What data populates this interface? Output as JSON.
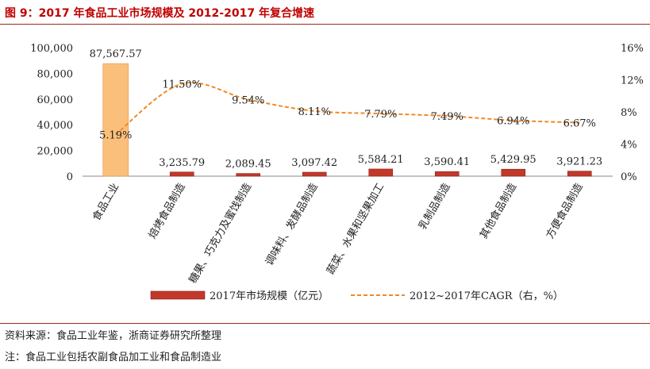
{
  "header": {
    "title": "图 9：2017 年食品工业市场规模及 2012-2017 年复合增速"
  },
  "footer": {
    "source": "资料来源：食品工业年鉴，浙商证券研究所整理",
    "note": "注：食品工业包括农副食品加工业和食品制造业"
  },
  "chart_data": {
    "type": "bar",
    "categories": [
      "食品工业",
      "焙烤食品制造",
      "糖果、巧克力及蜜饯制造",
      "调味料、发酵品制造",
      "蔬菜、水果和坚果加工",
      "乳制品制造",
      "其他食品制造",
      "方便食品制造"
    ],
    "series": [
      {
        "name": "2017年市场规模（亿元）",
        "type": "bar",
        "axis": "left",
        "values": [
          87567.57,
          3235.79,
          2089.45,
          3097.42,
          5584.21,
          3590.41,
          5429.95,
          3921.23
        ],
        "labels": [
          "87,567.57",
          "3,235.79",
          "2,089.45",
          "3,097.42",
          "5,584.21",
          "3,590.41",
          "5,429.95",
          "3,921.23"
        ]
      },
      {
        "name": "2012~2017年CAGR（右，%）",
        "type": "line",
        "axis": "right",
        "values": [
          5.19,
          11.5,
          9.54,
          8.11,
          7.79,
          7.49,
          6.94,
          6.67
        ],
        "labels": [
          "5.19%",
          "11.50%",
          "9.54%",
          "8.11%",
          "7.79%",
          "7.49%",
          "6.94%",
          "6.67%"
        ]
      }
    ],
    "y_left": {
      "lim": [
        0,
        100000
      ],
      "ticks": [
        "0",
        "20,000",
        "40,000",
        "60,000",
        "80,000",
        "100,000"
      ]
    },
    "y_right": {
      "lim": [
        0,
        16
      ],
      "ticks": [
        "0%",
        "4%",
        "8%",
        "12%",
        "16%"
      ]
    },
    "legend_position": "bottom",
    "colors": {
      "bar": "#c0392b",
      "highlight_bar": "#fbbf7c",
      "line": "#f08a24",
      "title": "#c00000"
    }
  }
}
